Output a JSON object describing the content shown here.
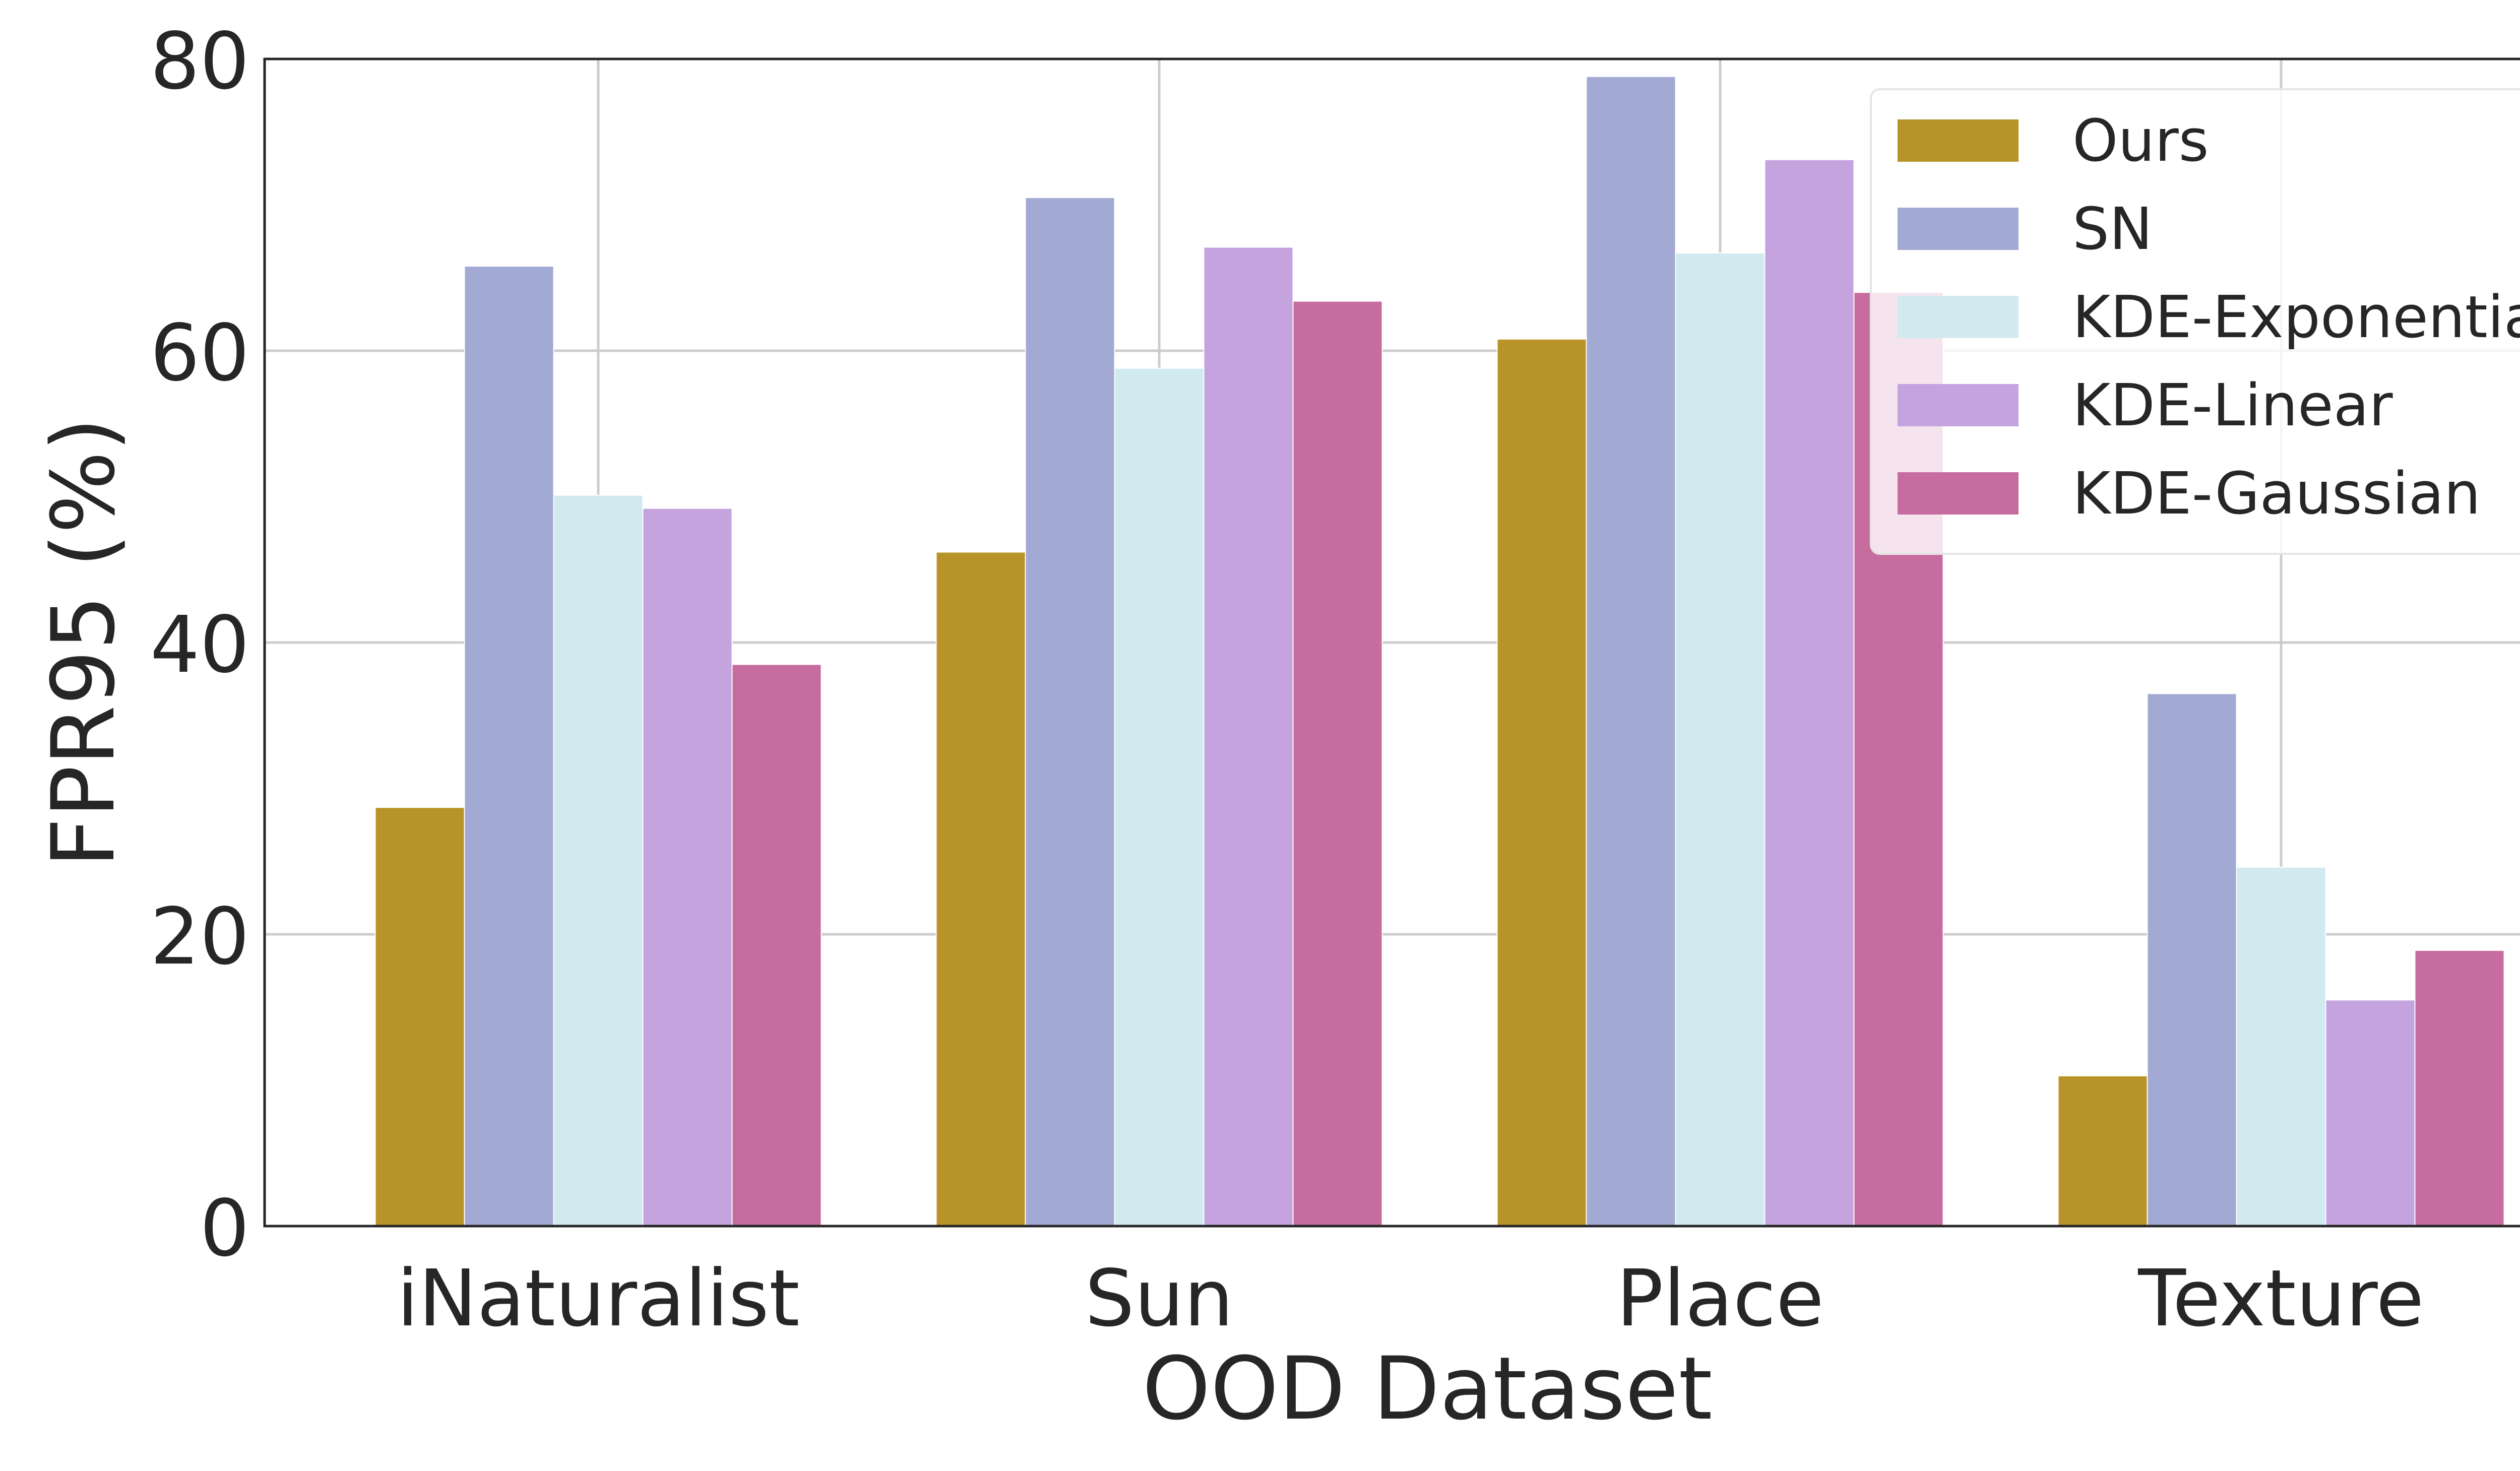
{
  "chart_data": {
    "type": "bar",
    "title": "",
    "xlabel": "OOD Dataset",
    "ylabel": "FPR95 (%)",
    "ylim": [
      0,
      80
    ],
    "yticks": [
      0,
      20,
      40,
      60,
      80
    ],
    "grid": true,
    "legend_position": "top-right",
    "categories": [
      "iNaturalist",
      "Sun",
      "Place",
      "Texture"
    ],
    "series": [
      {
        "name": "Ours",
        "color": "#b89428",
        "values": [
          28.7,
          46.2,
          60.8,
          10.3
        ]
      },
      {
        "name": "SN",
        "color": "#a2a9d2",
        "values": [
          65.8,
          70.5,
          78.8,
          36.5
        ]
      },
      {
        "name": "KDE-Exponential",
        "color": "#d1eaf0",
        "values": [
          50.1,
          58.8,
          66.7,
          24.6
        ]
      },
      {
        "name": "KDE-Linear",
        "color": "#c4a3de",
        "values": [
          49.2,
          67.1,
          73.1,
          15.5
        ]
      },
      {
        "name": "KDE-Gaussian",
        "color": "#c76c9e",
        "values": [
          38.5,
          63.4,
          64.0,
          18.9
        ]
      }
    ]
  }
}
